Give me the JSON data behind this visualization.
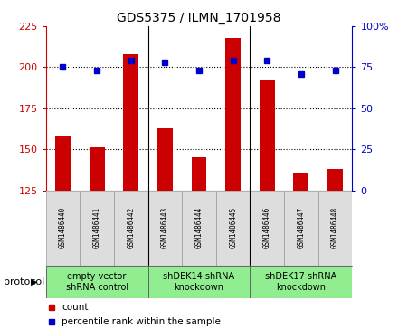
{
  "title": "GDS5375 / ILMN_1701958",
  "samples": [
    "GSM1486440",
    "GSM1486441",
    "GSM1486442",
    "GSM1486443",
    "GSM1486444",
    "GSM1486445",
    "GSM1486446",
    "GSM1486447",
    "GSM1486448"
  ],
  "counts": [
    158,
    151,
    208,
    163,
    145,
    218,
    192,
    135,
    138
  ],
  "percentiles": [
    75,
    73,
    79,
    78,
    73,
    79,
    79,
    71,
    73
  ],
  "ylim_left": [
    125,
    225
  ],
  "ylim_right": [
    0,
    100
  ],
  "yticks_left": [
    125,
    150,
    175,
    200,
    225
  ],
  "yticks_right": [
    0,
    25,
    50,
    75,
    100
  ],
  "ytick_labels_left": [
    "125",
    "150",
    "175",
    "200",
    "225"
  ],
  "ytick_labels_right": [
    "0",
    "25",
    "50",
    "75",
    "100%"
  ],
  "group_bounds": [
    [
      0,
      3,
      "empty vector\nshRNA control"
    ],
    [
      3,
      6,
      "shDEK14 shRNA\nknockdown"
    ],
    [
      6,
      9,
      "shDEK17 shRNA\nknockdown"
    ]
  ],
  "bar_color": "#CC0000",
  "dot_color": "#0000CC",
  "left_label_color": "#CC0000",
  "right_label_color": "#0000CC",
  "legend_count_color": "#CC0000",
  "legend_pct_color": "#0000CC",
  "group_bg_color": "#90EE90",
  "sample_bg_color": "#DDDDDD",
  "grid_ticks": [
    150,
    175,
    200
  ],
  "group_sep": [
    2.5,
    5.5
  ],
  "protocol_label": "protocol",
  "legend_count_label": "count",
  "legend_pct_label": "percentile rank within the sample",
  "title_fontsize": 10,
  "axis_fontsize": 8,
  "sample_fontsize": 5.5,
  "group_fontsize": 7,
  "legend_fontsize": 7.5,
  "protocol_fontsize": 8
}
